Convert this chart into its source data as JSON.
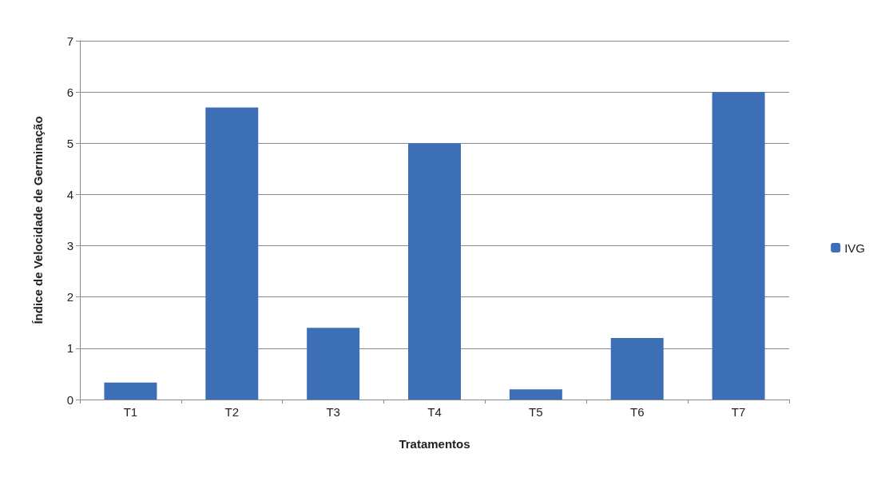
{
  "chart_data": {
    "type": "bar",
    "xlabel": "Tratamentos",
    "ylabel": "Índice de Velocidade de Germinação",
    "categories": [
      "T1",
      "T2",
      "T3",
      "T4",
      "T5",
      "T6",
      "T7"
    ],
    "series": [
      {
        "name": "IVG",
        "color": "#3d6fb6",
        "values": [
          0.33,
          5.7,
          1.4,
          5.0,
          0.2,
          1.2,
          6.0
        ]
      }
    ],
    "ylim": [
      0,
      7
    ],
    "yticks": [
      0,
      1,
      2,
      3,
      4,
      5,
      6,
      7
    ],
    "grid": "y",
    "legend": "right"
  }
}
